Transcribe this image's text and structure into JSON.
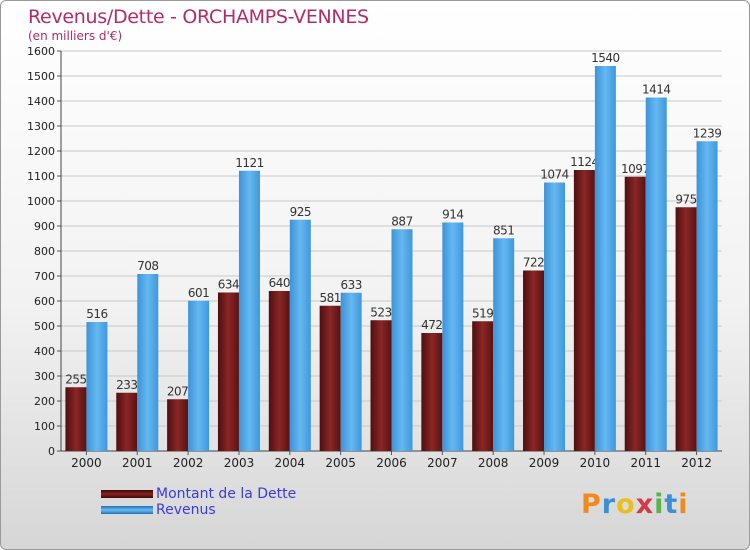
{
  "title": "Revenus/Dette - ORCHAMPS-VENNES",
  "subtitle": "(en milliers d'€)",
  "legend": {
    "dette_label": "Montant de la Dette",
    "revenus_label": "Revenus"
  },
  "logo": {
    "text": "Proxiti"
  },
  "colors": {
    "dette": "#7a1c1c",
    "revenus": "#4aa3e6",
    "title": "#b52a6a",
    "legend_text": "#3b3bd6"
  },
  "chart_data": {
    "type": "bar",
    "categories": [
      "2000",
      "2001",
      "2002",
      "2003",
      "2004",
      "2005",
      "2006",
      "2007",
      "2008",
      "2009",
      "2010",
      "2011",
      "2012"
    ],
    "series": [
      {
        "name": "Montant de la Dette",
        "values": [
          255,
          233,
          207,
          634,
          640,
          581,
          523,
          472,
          519,
          722,
          1124,
          1097,
          975
        ]
      },
      {
        "name": "Revenus",
        "values": [
          516,
          708,
          601,
          1121,
          925,
          633,
          887,
          914,
          851,
          1074,
          1540,
          1414,
          1239
        ]
      }
    ],
    "ylim": [
      0,
      1600
    ],
    "yticks": [
      0,
      100,
      200,
      300,
      400,
      500,
      600,
      700,
      800,
      900,
      1000,
      1100,
      1200,
      1300,
      1400,
      1500,
      1600
    ],
    "grid": true,
    "legend_position": "bottom-left"
  }
}
